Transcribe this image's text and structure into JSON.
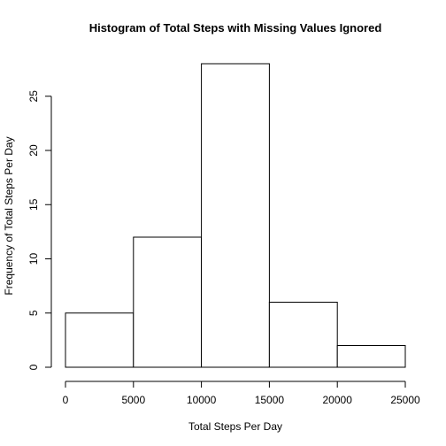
{
  "chart_data": {
    "type": "bar",
    "title": "Histogram of Total Steps with Missing Values Ignored",
    "xlabel": "Total Steps Per Day",
    "ylabel": "Frequency of Total Steps Per Day",
    "bins": [
      {
        "start": 0,
        "end": 5000,
        "count": 5
      },
      {
        "start": 5000,
        "end": 10000,
        "count": 12
      },
      {
        "start": 10000,
        "end": 15000,
        "count": 28
      },
      {
        "start": 15000,
        "end": 20000,
        "count": 6
      },
      {
        "start": 20000,
        "end": 25000,
        "count": 2
      }
    ],
    "x_ticks": [
      0,
      5000,
      10000,
      15000,
      20000,
      25000
    ],
    "y_ticks": [
      0,
      5,
      10,
      15,
      20,
      25
    ],
    "xlim": [
      0,
      25000
    ],
    "ylim": [
      0,
      28
    ],
    "grid": false,
    "bar_color": "#ffffff",
    "bar_border_color": "#000000"
  }
}
